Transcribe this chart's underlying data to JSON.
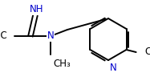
{
  "bg": "#ffffff",
  "bc": "#000000",
  "nc": "#0000cc",
  "lw": 1.4,
  "fs": 8.5,
  "figsize": [
    1.87,
    0.91
  ],
  "dpi": 100,
  "xlim": [
    0,
    187
  ],
  "ylim": [
    0,
    91
  ]
}
